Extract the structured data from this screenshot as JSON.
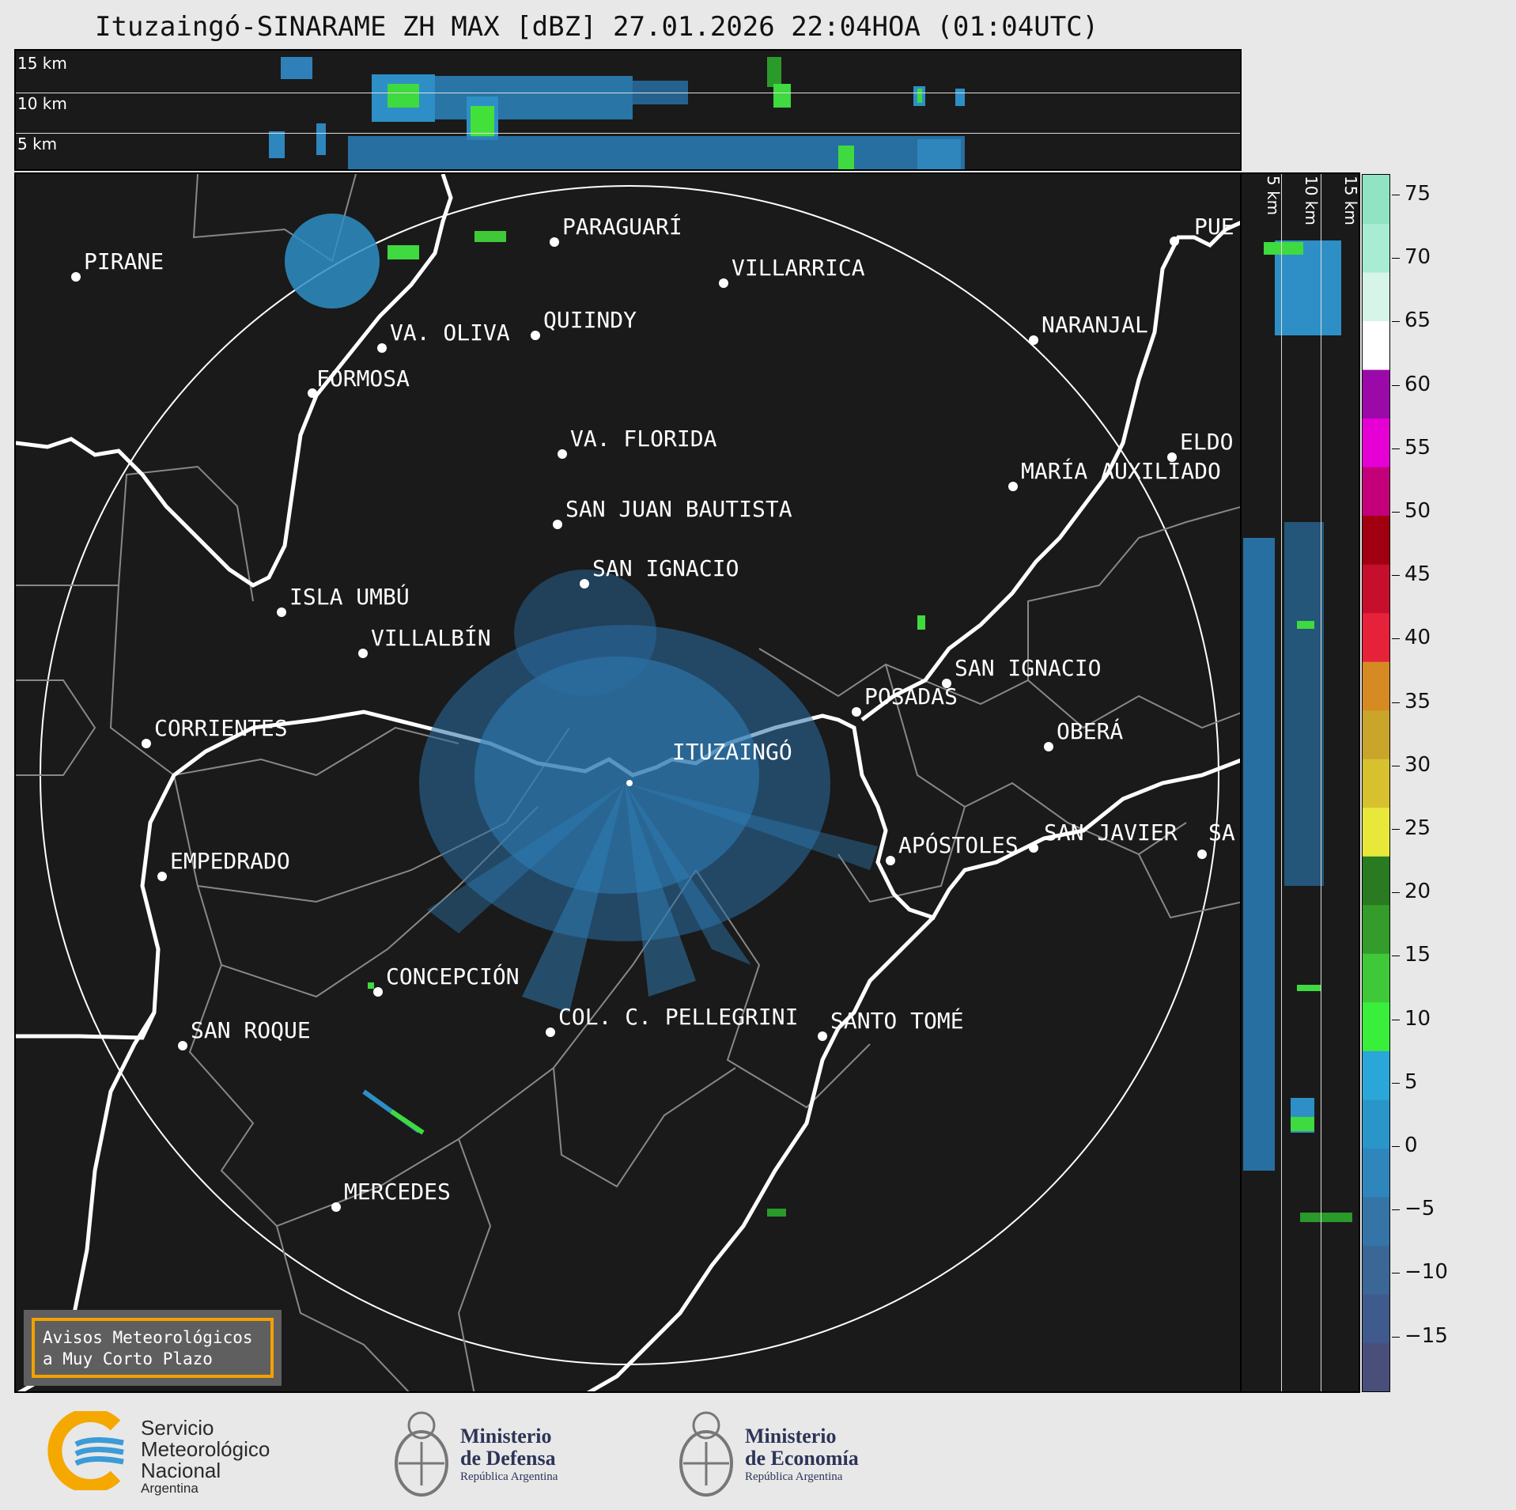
{
  "title": "Ituzaingó-SINARAME ZH MAX [dBZ] 27.01.2026 22:04HOA (01:04UTC)",
  "height_labels": [
    "15 km",
    "10 km",
    "5 km"
  ],
  "cities": [
    {
      "name": "PIRANE"
    },
    {
      "name": "PARAGUARÍ"
    },
    {
      "name": "VILLARRICA"
    },
    {
      "name": "QUIINDY"
    },
    {
      "name": "VA. OLIVA"
    },
    {
      "name": "NARANJAL"
    },
    {
      "name": "FORMOSA"
    },
    {
      "name": "PUE"
    },
    {
      "name": "ELDO"
    },
    {
      "name": "VA. FLORIDA"
    },
    {
      "name": "MARÍA AUXILIADO"
    },
    {
      "name": "SAN JUAN BAUTISTA"
    },
    {
      "name": "SAN IGNACIO"
    },
    {
      "name": "ISLA UMBÚ"
    },
    {
      "name": "VILLALBÍN"
    },
    {
      "name": "SAN IGNACIO"
    },
    {
      "name": "POSADAS"
    },
    {
      "name": "CORRIENTES"
    },
    {
      "name": "ITUZAINGÓ"
    },
    {
      "name": "OBERÁ"
    },
    {
      "name": "APÓSTOLES"
    },
    {
      "name": "SAN JAVIER"
    },
    {
      "name": "SA"
    },
    {
      "name": "EMPEDRADO"
    },
    {
      "name": "CONCEPCIÓN"
    },
    {
      "name": "COL. C. PELLEGRINI"
    },
    {
      "name": "SANTO TOMÉ"
    },
    {
      "name": "SAN ROQUE"
    },
    {
      "name": "MERCEDES"
    }
  ],
  "colorbar": {
    "ticks": [
      "75",
      "70",
      "65",
      "60",
      "55",
      "50",
      "45",
      "40",
      "35",
      "30",
      "25",
      "20",
      "15",
      "10",
      "5",
      "0",
      "−5",
      "−10",
      "−15"
    ],
    "colors": [
      "#4a4f7a",
      "#3f5a8c",
      "#3a6796",
      "#3574a6",
      "#2e86bd",
      "#2a95c8",
      "#2aa7d8",
      "#39ef3c",
      "#3fc938",
      "#349c2a",
      "#2a7a22",
      "#e8e83a",
      "#d7c12f",
      "#c9a52a",
      "#d58a23",
      "#e6223a",
      "#c60f2c",
      "#a00010",
      "#c3007a",
      "#e600d6",
      "#9b0aa8",
      "#ffffff",
      "#d6f4e8",
      "#a8ecd4",
      "#90e4c4"
    ]
  },
  "notice": {
    "line1": "Avisos Meteorológicos",
    "line2": "a Muy Corto Plazo"
  },
  "logos": {
    "smn_line1": "Servicio",
    "smn_line2": "Meteorológico",
    "smn_line3": "Nacional",
    "smn_line4": "Argentina",
    "defensa_line1": "Ministerio",
    "defensa_line2": "de Defensa",
    "defensa_line3": "República Argentina",
    "economia_line1": "Ministerio",
    "economia_line2": "de Economía",
    "economia_line3": "República Argentina"
  }
}
